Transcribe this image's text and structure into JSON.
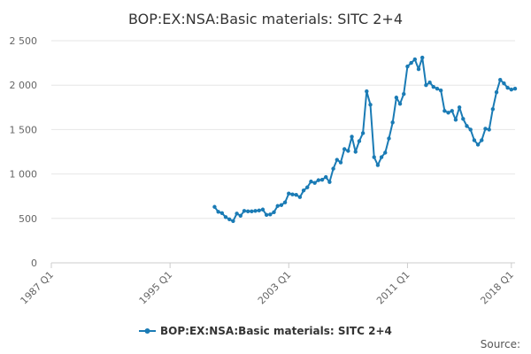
{
  "chart_data": {
    "type": "line",
    "title": "BOP:EX:NSA:Basic materials: SITC 2+4",
    "xlabel": "",
    "ylabel": "",
    "ylim": [
      0,
      2500
    ],
    "y_ticks": [
      0,
      500,
      1000,
      1500,
      2000,
      2500
    ],
    "y_tick_labels": [
      "0",
      "500",
      "1 000",
      "1 500",
      "2 000",
      "2 500"
    ],
    "x_ticks": [
      "1987 Q1",
      "1995 Q1",
      "2003 Q1",
      "2011 Q1",
      "2018 Q1"
    ],
    "xlim": [
      "1987 Q1",
      "2018 Q2"
    ],
    "grid": true,
    "legend_position": "bottom",
    "colors": {
      "series": "#1a7bb5",
      "grid": "#e6e6e6",
      "axis": "#cccccc"
    },
    "series": [
      {
        "name": "BOP:EX:NSA:Basic materials: SITC 2+4",
        "x": [
          "1998 Q1",
          "1998 Q2",
          "1998 Q3",
          "1998 Q4",
          "1999 Q1",
          "1999 Q2",
          "1999 Q3",
          "1999 Q4",
          "2000 Q1",
          "2000 Q2",
          "2000 Q3",
          "2000 Q4",
          "2001 Q1",
          "2001 Q2",
          "2001 Q3",
          "2001 Q4",
          "2002 Q1",
          "2002 Q2",
          "2002 Q3",
          "2002 Q4",
          "2003 Q1",
          "2003 Q2",
          "2003 Q3",
          "2003 Q4",
          "2004 Q1",
          "2004 Q2",
          "2004 Q3",
          "2004 Q4",
          "2005 Q1",
          "2005 Q2",
          "2005 Q3",
          "2005 Q4",
          "2006 Q1",
          "2006 Q2",
          "2006 Q3",
          "2006 Q4",
          "2007 Q1",
          "2007 Q2",
          "2007 Q3",
          "2007 Q4",
          "2008 Q1",
          "2008 Q2",
          "2008 Q3",
          "2008 Q4",
          "2009 Q1",
          "2009 Q2",
          "2009 Q3",
          "2009 Q4",
          "2010 Q1",
          "2010 Q2",
          "2010 Q3",
          "2010 Q4",
          "2011 Q1",
          "2011 Q2",
          "2011 Q3",
          "2011 Q4",
          "2012 Q1",
          "2012 Q2",
          "2012 Q3",
          "2012 Q4",
          "2013 Q1",
          "2013 Q2",
          "2013 Q3",
          "2013 Q4",
          "2014 Q1",
          "2014 Q2",
          "2014 Q3",
          "2014 Q4",
          "2015 Q1",
          "2015 Q2",
          "2015 Q3",
          "2015 Q4",
          "2016 Q1",
          "2016 Q2",
          "2016 Q3",
          "2016 Q4",
          "2017 Q1",
          "2017 Q2",
          "2017 Q3",
          "2017 Q4",
          "2018 Q1",
          "2018 Q2"
        ],
        "values": [
          630,
          575,
          560,
          515,
          490,
          470,
          555,
          530,
          585,
          580,
          580,
          585,
          590,
          600,
          540,
          545,
          570,
          640,
          650,
          680,
          780,
          770,
          765,
          740,
          815,
          850,
          915,
          900,
          930,
          935,
          965,
          910,
          1060,
          1160,
          1130,
          1280,
          1260,
          1420,
          1250,
          1370,
          1460,
          1930,
          1780,
          1190,
          1100,
          1190,
          1240,
          1400,
          1580,
          1860,
          1790,
          1900,
          2210,
          2250,
          2290,
          2180,
          2310,
          2000,
          2030,
          1980,
          1960,
          1940,
          1710,
          1690,
          1710,
          1610,
          1750,
          1620,
          1540,
          1500,
          1380,
          1330,
          1380,
          1510,
          1500,
          1730,
          1920,
          2060,
          2020,
          1970,
          1950,
          1960
        ]
      }
    ]
  },
  "legend": {
    "label": "BOP:EX:NSA:Basic materials: SITC 2+4"
  },
  "source_label": "Source:"
}
